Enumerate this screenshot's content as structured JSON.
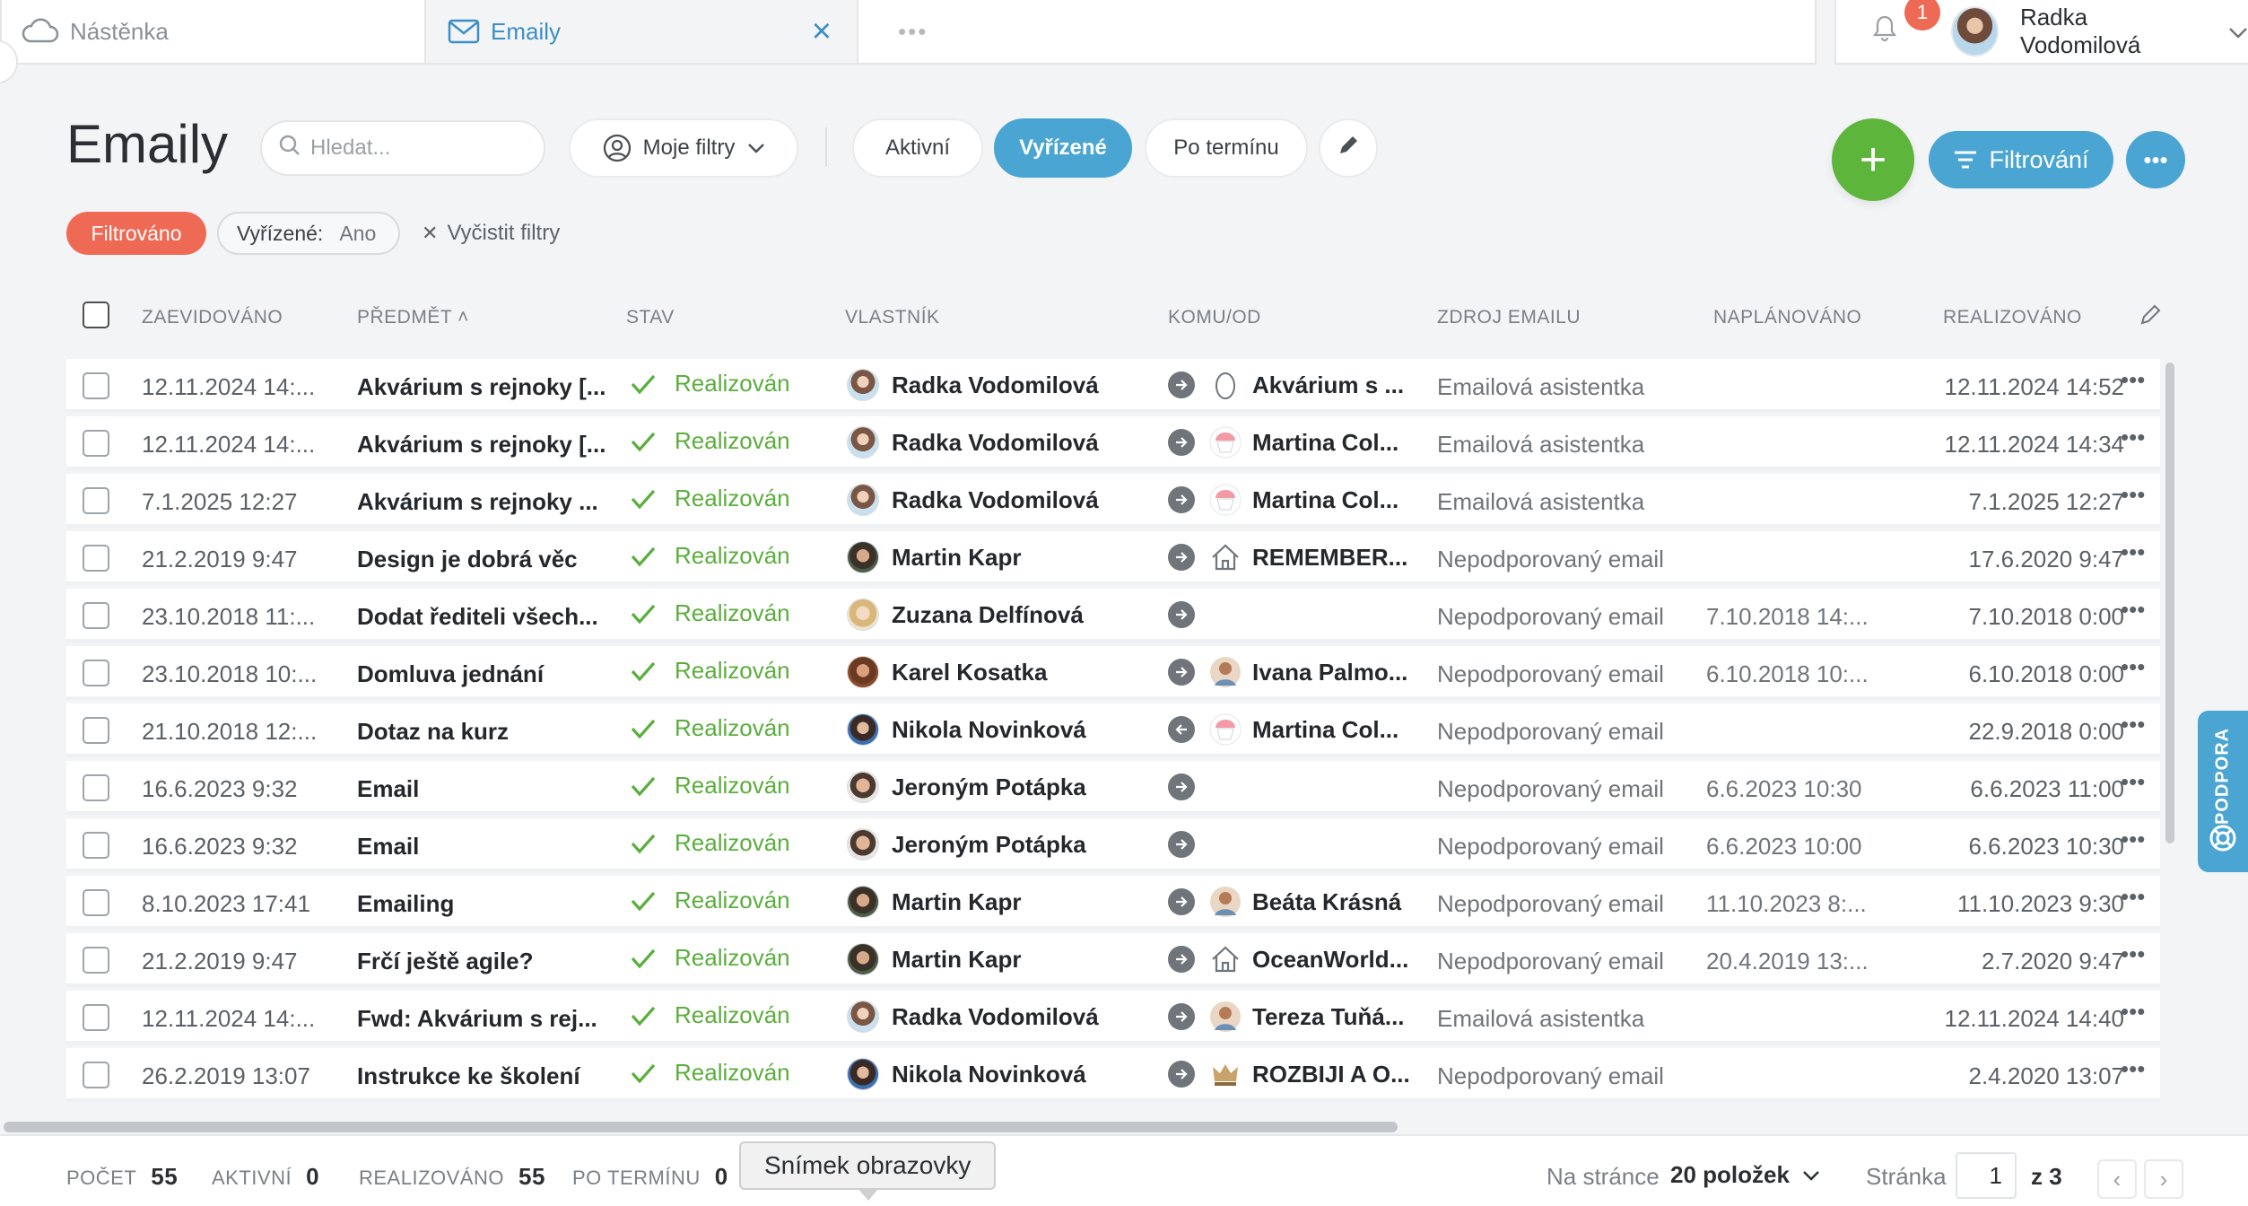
{
  "tabs": {
    "dashboard": "Nástěnka",
    "emails": "Emaily",
    "more": "•••"
  },
  "user": {
    "name": "Radka Vodomilová",
    "notifications": "1"
  },
  "header": {
    "title": "Emaily",
    "search_placeholder": "Hledat...",
    "my_filters": "Moje filtry",
    "views": [
      "Aktivní",
      "Vyřízené",
      "Po termínu"
    ],
    "active_view": "Vyřízené",
    "add": "+",
    "filter_button": "Filtrování",
    "more": "•••"
  },
  "filters": {
    "status": "Filtrováno",
    "condition_key": "Vyřízené:",
    "condition_value": "Ano",
    "clear": "Vyčistit filtry"
  },
  "table": {
    "columns": {
      "created": "ZAEVIDOVÁNO",
      "subject": "PŘEDMĚT",
      "state": "STAV",
      "owner": "VLASTNÍK",
      "to_from": "KOMU/OD",
      "source": "ZDROJ EMAILU",
      "planned": "NAPLÁNOVÁNO",
      "realized": "REALIZOVÁNO"
    },
    "sort_indicator": "˄",
    "rows": [
      {
        "created": "12.11.2024 14:...",
        "subject": "Akvárium s rejnoky [...",
        "state": "Realizován",
        "owner": "Radka Vodomilová",
        "owner_avatar": "female-light",
        "direction": "out",
        "to": "Akvárium s ...",
        "to_icon": "egg-icon",
        "source": "Emailová asistentka",
        "planned": "",
        "realized": "12.11.2024 14:52"
      },
      {
        "created": "12.11.2024 14:...",
        "subject": "Akvárium s rejnoky [...",
        "state": "Realizován",
        "owner": "Radka Vodomilová",
        "owner_avatar": "female-light",
        "direction": "out",
        "to": "Martina Col...",
        "to_icon": "cupcake-icon",
        "source": "Emailová asistentka",
        "planned": "",
        "realized": "12.11.2024 14:34"
      },
      {
        "created": "7.1.2025 12:27",
        "subject": "Akvárium s rejnoky ...",
        "state": "Realizován",
        "owner": "Radka Vodomilová",
        "owner_avatar": "female-light",
        "direction": "out",
        "to": "Martina Col...",
        "to_icon": "cupcake-icon",
        "source": "Emailová asistentka",
        "planned": "",
        "realized": "7.1.2025 12:27"
      },
      {
        "created": "21.2.2019 9:47",
        "subject": "Design je dobrá věc",
        "state": "Realizován",
        "owner": "Martin Kapr",
        "owner_avatar": "male-dark",
        "direction": "out",
        "to": "REMEMBER...",
        "to_icon": "house-icon",
        "source": "Nepodporovaný email",
        "planned": "",
        "realized": "17.6.2020 9:47"
      },
      {
        "created": "23.10.2018 11:...",
        "subject": "Dodat řediteli všech...",
        "state": "Realizován",
        "owner": "Zuzana Delfínová",
        "owner_avatar": "female-blonde",
        "direction": "out",
        "to": "",
        "to_icon": "",
        "source": "Nepodporovaný email",
        "planned": "7.10.2018 14:...",
        "realized": "7.10.2018 0:00"
      },
      {
        "created": "23.10.2018 10:...",
        "subject": "Domluva jednání",
        "state": "Realizován",
        "owner": "Karel Kosatka",
        "owner_avatar": "male-brown",
        "direction": "out",
        "to": "Ivana Palmo...",
        "to_icon": "person-icon",
        "source": "Nepodporovaný email",
        "planned": "6.10.2018 10:...",
        "realized": "6.10.2018 0:00"
      },
      {
        "created": "21.10.2018 12:...",
        "subject": "Dotaz na kurz",
        "state": "Realizován",
        "owner": "Nikola Novinková",
        "owner_avatar": "female-dark",
        "direction": "in",
        "to": "Martina Col...",
        "to_icon": "cupcake-icon",
        "source": "Nepodporovaný email",
        "planned": "",
        "realized": "22.9.2018 0:00"
      },
      {
        "created": "16.6.2023 9:32",
        "subject": "Email",
        "state": "Realizován",
        "owner": "Jeroným Potápka",
        "owner_avatar": "male-young",
        "direction": "out",
        "to": "",
        "to_icon": "",
        "source": "Nepodporovaný email",
        "planned": "6.6.2023 10:30",
        "realized": "6.6.2023 11:00"
      },
      {
        "created": "16.6.2023 9:32",
        "subject": "Email",
        "state": "Realizován",
        "owner": "Jeroným Potápka",
        "owner_avatar": "male-young",
        "direction": "out",
        "to": "",
        "to_icon": "",
        "source": "Nepodporovaný email",
        "planned": "6.6.2023 10:00",
        "realized": "6.6.2023 10:30"
      },
      {
        "created": "8.10.2023 17:41",
        "subject": "Emailing",
        "state": "Realizován",
        "owner": "Martin Kapr",
        "owner_avatar": "male-dark",
        "direction": "out",
        "to": "Beáta Krásná",
        "to_icon": "person-icon",
        "source": "Nepodporovaný email",
        "planned": "11.10.2023 8:...",
        "realized": "11.10.2023 9:30"
      },
      {
        "created": "21.2.2019 9:47",
        "subject": "Frčí ještě agile?",
        "state": "Realizován",
        "owner": "Martin Kapr",
        "owner_avatar": "male-dark",
        "direction": "out",
        "to": "OceanWorld...",
        "to_icon": "house-icon",
        "source": "Nepodporovaný email",
        "planned": "20.4.2019 13:...",
        "realized": "2.7.2020 9:47"
      },
      {
        "created": "12.11.2024 14:...",
        "subject": "Fwd: Akvárium s rej...",
        "state": "Realizován",
        "owner": "Radka Vodomilová",
        "owner_avatar": "female-light",
        "direction": "out",
        "to": "Tereza Tuňá...",
        "to_icon": "person-icon",
        "source": "Emailová asistentka",
        "planned": "",
        "realized": "12.11.2024 14:40"
      },
      {
        "created": "26.2.2019 13:07",
        "subject": "Instrukce ke školení",
        "state": "Realizován",
        "owner": "Nikola Novinková",
        "owner_avatar": "female-dark",
        "direction": "out",
        "to": "ROZBIJI A O...",
        "to_icon": "crown-icon",
        "source": "Nepodporovaný email",
        "planned": "",
        "realized": "2.4.2020 13:07"
      }
    ],
    "row_menu": "•••"
  },
  "support": {
    "label": "PODPORA"
  },
  "footer": {
    "count_label": "POČET",
    "count": "55",
    "active_label": "AKTIVNÍ",
    "active": "0",
    "realized_label": "REALIZOVÁNO",
    "realized": "55",
    "overdue_label": "PO TERMÍNU",
    "overdue": "0",
    "tooltip": "Snímek obrazovky",
    "per_page_label": "Na stránce",
    "per_page_value": "20 položek",
    "page_label": "Stránka",
    "page_current": "1",
    "page_of": "z 3",
    "prev": "‹",
    "next": "›"
  },
  "colors": {
    "accent_blue": "#4aa5d2",
    "add_green": "#5db53b",
    "filtered_red": "#ee6a55",
    "status_green": "#5aae3c"
  }
}
